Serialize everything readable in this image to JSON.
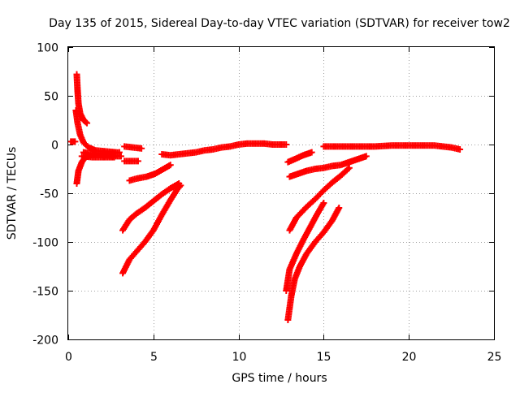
{
  "chart_data": {
    "type": "scatter",
    "title": "Day 135 of 2015, Sidereal Day-to-day VTEC variation (SDTVAR) for receiver tow2",
    "xlabel": "GPS time / hours",
    "ylabel": "SDTVAR / TECUs",
    "xlim": [
      0,
      25
    ],
    "ylim": [
      -200,
      100
    ],
    "xticks": [
      "0",
      "5",
      "10",
      "15",
      "20",
      "25"
    ],
    "yticks": [
      "100",
      "50",
      "0",
      "-50",
      "-100",
      "-150",
      "-200"
    ],
    "grid": true,
    "marker": "+",
    "color": "#ff0000",
    "tracks": [
      [
        [
          0.5,
          72
        ],
        [
          0.55,
          55
        ],
        [
          0.6,
          42
        ],
        [
          0.7,
          32
        ],
        [
          0.9,
          25
        ],
        [
          1.1,
          22
        ]
      ],
      [
        [
          0.15,
          3
        ],
        [
          0.4,
          3
        ]
      ],
      [
        [
          0.45,
          35
        ],
        [
          0.55,
          22
        ],
        [
          0.7,
          10
        ],
        [
          0.9,
          2
        ],
        [
          1.2,
          -3
        ],
        [
          1.6,
          -6
        ],
        [
          2.2,
          -7
        ],
        [
          2.8,
          -8
        ]
      ],
      [
        [
          0.5,
          -40
        ],
        [
          0.6,
          -27
        ],
        [
          0.8,
          -18
        ],
        [
          1.0,
          -13
        ],
        [
          1.5,
          -10
        ],
        [
          2.0,
          -9
        ],
        [
          2.5,
          -9
        ],
        [
          3.0,
          -8
        ]
      ],
      [
        [
          0.9,
          -8
        ],
        [
          1.5,
          -10
        ],
        [
          2.0,
          -11
        ],
        [
          2.6,
          -12
        ],
        [
          3.1,
          -12
        ]
      ],
      [
        [
          0.8,
          -12
        ],
        [
          1.4,
          -13
        ],
        [
          2.0,
          -13
        ],
        [
          2.7,
          -13
        ]
      ],
      [
        [
          3.3,
          -17
        ],
        [
          3.7,
          -17
        ],
        [
          4.1,
          -17
        ]
      ],
      [
        [
          3.3,
          -2
        ],
        [
          3.8,
          -3
        ],
        [
          4.3,
          -4
        ]
      ],
      [
        [
          3.6,
          -37
        ],
        [
          4.0,
          -35
        ],
        [
          4.6,
          -33
        ],
        [
          5.1,
          -30
        ],
        [
          5.6,
          -25
        ],
        [
          6.0,
          -21
        ]
      ],
      [
        [
          5.5,
          -10
        ],
        [
          6.0,
          -11
        ],
        [
          6.5,
          -10
        ],
        [
          7.0,
          -9
        ],
        [
          7.5,
          -8
        ],
        [
          8.0,
          -6
        ],
        [
          8.5,
          -5
        ],
        [
          9.0,
          -3
        ],
        [
          9.5,
          -2
        ],
        [
          10.0,
          0
        ],
        [
          10.5,
          1
        ],
        [
          11.0,
          1
        ],
        [
          11.5,
          1
        ],
        [
          12.0,
          0
        ],
        [
          12.5,
          0
        ],
        [
          12.8,
          0
        ]
      ],
      [
        [
          3.2,
          -88
        ],
        [
          3.6,
          -77
        ],
        [
          4.0,
          -71
        ],
        [
          4.5,
          -65
        ],
        [
          5.0,
          -58
        ],
        [
          5.5,
          -51
        ],
        [
          6.0,
          -45
        ],
        [
          6.5,
          -40
        ]
      ],
      [
        [
          3.2,
          -132
        ],
        [
          3.6,
          -118
        ],
        [
          4.0,
          -110
        ],
        [
          4.5,
          -100
        ],
        [
          5.0,
          -88
        ],
        [
          5.5,
          -72
        ],
        [
          6.0,
          -57
        ],
        [
          6.4,
          -46
        ],
        [
          6.6,
          -42
        ]
      ],
      [
        [
          12.9,
          -18
        ],
        [
          13.3,
          -15
        ],
        [
          13.8,
          -11
        ],
        [
          14.3,
          -8
        ]
      ],
      [
        [
          13.0,
          -33
        ],
        [
          13.5,
          -30
        ],
        [
          14.0,
          -27
        ],
        [
          14.5,
          -25
        ],
        [
          15.0,
          -24
        ],
        [
          15.5,
          -22
        ],
        [
          16.0,
          -21
        ],
        [
          16.5,
          -18
        ],
        [
          17.0,
          -15
        ],
        [
          17.5,
          -12
        ]
      ],
      [
        [
          15.0,
          -2
        ],
        [
          16.0,
          -2
        ],
        [
          17.0,
          -2
        ],
        [
          18.0,
          -2
        ],
        [
          19.0,
          -1
        ],
        [
          20.0,
          -1
        ],
        [
          21.0,
          -1
        ],
        [
          21.5,
          -1
        ],
        [
          22.0,
          -2
        ],
        [
          22.5,
          -3
        ],
        [
          23.0,
          -5
        ]
      ],
      [
        [
          12.9,
          -180
        ],
        [
          13.1,
          -155
        ],
        [
          13.3,
          -138
        ],
        [
          13.6,
          -125
        ],
        [
          14.0,
          -112
        ],
        [
          14.5,
          -100
        ],
        [
          15.0,
          -90
        ],
        [
          15.5,
          -78
        ],
        [
          15.9,
          -65
        ]
      ],
      [
        [
          12.8,
          -150
        ],
        [
          13.0,
          -128
        ],
        [
          13.4,
          -112
        ],
        [
          13.8,
          -98
        ],
        [
          14.2,
          -85
        ],
        [
          14.6,
          -72
        ],
        [
          15.0,
          -60
        ]
      ],
      [
        [
          13.0,
          -88
        ],
        [
          13.4,
          -75
        ],
        [
          14.0,
          -64
        ],
        [
          14.5,
          -56
        ],
        [
          15.0,
          -47
        ],
        [
          15.5,
          -39
        ],
        [
          16.0,
          -32
        ],
        [
          16.5,
          -24
        ]
      ]
    ]
  }
}
